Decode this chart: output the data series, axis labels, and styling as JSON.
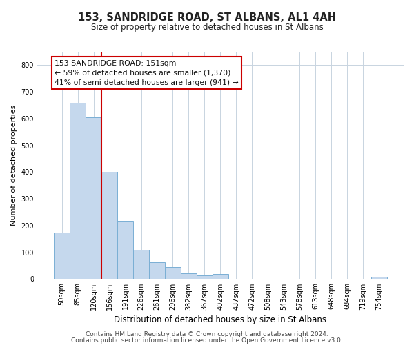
{
  "title": "153, SANDRIDGE ROAD, ST ALBANS, AL1 4AH",
  "subtitle": "Size of property relative to detached houses in St Albans",
  "xlabel": "Distribution of detached houses by size in St Albans",
  "ylabel": "Number of detached properties",
  "bar_labels": [
    "50sqm",
    "85sqm",
    "120sqm",
    "156sqm",
    "191sqm",
    "226sqm",
    "261sqm",
    "296sqm",
    "332sqm",
    "367sqm",
    "402sqm",
    "437sqm",
    "472sqm",
    "508sqm",
    "543sqm",
    "578sqm",
    "613sqm",
    "648sqm",
    "684sqm",
    "719sqm",
    "754sqm"
  ],
  "bar_heights": [
    175,
    660,
    605,
    400,
    215,
    110,
    62,
    45,
    22,
    15,
    18,
    0,
    0,
    0,
    0,
    0,
    0,
    0,
    0,
    0,
    8
  ],
  "bar_color": "#c5d8ed",
  "bar_edge_color": "#7aafd4",
  "ylim": [
    0,
    850
  ],
  "yticks": [
    0,
    100,
    200,
    300,
    400,
    500,
    600,
    700,
    800
  ],
  "vline_x": 2.5,
  "vline_color": "#cc0000",
  "annotation_title": "153 SANDRIDGE ROAD: 151sqm",
  "annotation_line1": "← 59% of detached houses are smaller (1,370)",
  "annotation_line2": "41% of semi-detached houses are larger (941) →",
  "annotation_box_color": "#ffffff",
  "annotation_box_edge": "#cc0000",
  "footer1": "Contains HM Land Registry data © Crown copyright and database right 2024.",
  "footer2": "Contains public sector information licensed under the Open Government Licence v3.0.",
  "background_color": "#ffffff",
  "grid_color": "#c8d4e0",
  "title_fontsize": 10.5,
  "subtitle_fontsize": 8.5,
  "ylabel_fontsize": 8,
  "xlabel_fontsize": 8.5,
  "tick_fontsize": 7,
  "annotation_fontsize": 7.8,
  "footer_fontsize": 6.5
}
